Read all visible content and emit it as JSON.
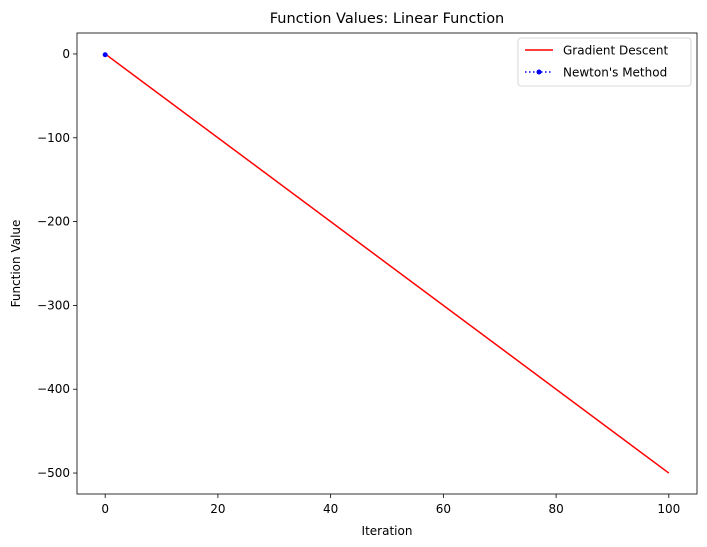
{
  "chart_data": {
    "type": "line",
    "title": "Function Values: Linear Function",
    "xlabel": "Iteration",
    "ylabel": "Function Value",
    "xlim": [
      -5,
      105
    ],
    "ylim": [
      -525,
      25
    ],
    "xticks": [
      0,
      20,
      40,
      60,
      80,
      100
    ],
    "yticks": [
      0,
      -100,
      -200,
      -300,
      -400,
      -500
    ],
    "xtick_labels": [
      "0",
      "20",
      "40",
      "60",
      "80",
      "100"
    ],
    "ytick_labels": [
      "0",
      "−100",
      "−200",
      "−300",
      "−400",
      "−500"
    ],
    "grid": false,
    "legend_position": "top-right",
    "series": [
      {
        "name": "Gradient Descent",
        "color": "#ff0000",
        "style": "solid",
        "marker": "none",
        "x": [
          0,
          100
        ],
        "y": [
          0,
          -500
        ]
      },
      {
        "name": "Newton's Method",
        "color": "#0000ff",
        "style": "dotted",
        "marker": "circle",
        "x": [
          0
        ],
        "y": [
          -1
        ]
      }
    ]
  }
}
